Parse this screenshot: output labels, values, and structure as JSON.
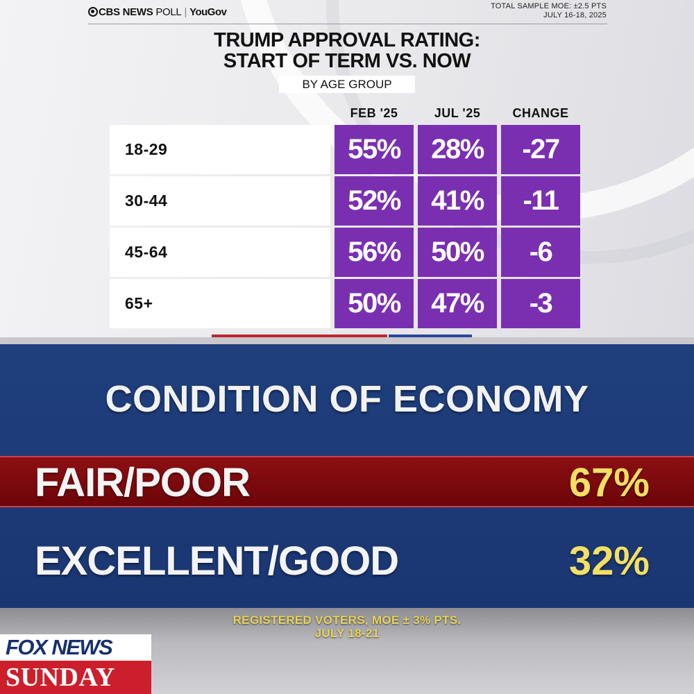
{
  "cbs": {
    "brand_left": "CBS NEWS",
    "brand_poll": "POLL",
    "brand_right": "YouGov",
    "moe_line1": "TOTAL SAMPLE MOE: ±2.5 PTS",
    "moe_line2": "JULY 16-18, 2025",
    "title_line1": "TRUMP APPROVAL RATING:",
    "title_line2": "START OF TERM VS. NOW",
    "subtitle": "BY AGE GROUP"
  },
  "fox": {
    "title": "CONDITION OF ECONOMY",
    "footnote_line1": "REGISTERED VOTERS, MOE ± 3% PTS.",
    "footnote_line2": "JULY 18-21",
    "logo_top": "FOX NEWS",
    "logo_bottom": "SUNDAY"
  },
  "colors": {
    "purple_cell": "#7a2fb1",
    "fox_blue": "#1f3f7d",
    "fox_red_bar": "#8c0f12",
    "fox_value_yellow": "#f3df63"
  },
  "chart_data": [
    {
      "type": "table",
      "title": "TRUMP APPROVAL RATING: START OF TERM VS. NOW",
      "subtitle": "BY AGE GROUP",
      "columns": [
        "FEB '25",
        "JUL '25",
        "CHANGE"
      ],
      "rows": [
        {
          "label": "18-29",
          "values": [
            "55%",
            "28%",
            "-27"
          ]
        },
        {
          "label": "30-44",
          "values": [
            "52%",
            "41%",
            "-11"
          ]
        },
        {
          "label": "45-64",
          "values": [
            "56%",
            "50%",
            "-6"
          ]
        },
        {
          "label": "65+",
          "values": [
            "50%",
            "47%",
            "-3"
          ]
        }
      ]
    },
    {
      "type": "table",
      "title": "CONDITION OF ECONOMY",
      "rows": [
        {
          "label": "FAIR/POOR",
          "value": "67%"
        },
        {
          "label": "EXCELLENT/GOOD",
          "value": "32%"
        }
      ]
    }
  ]
}
